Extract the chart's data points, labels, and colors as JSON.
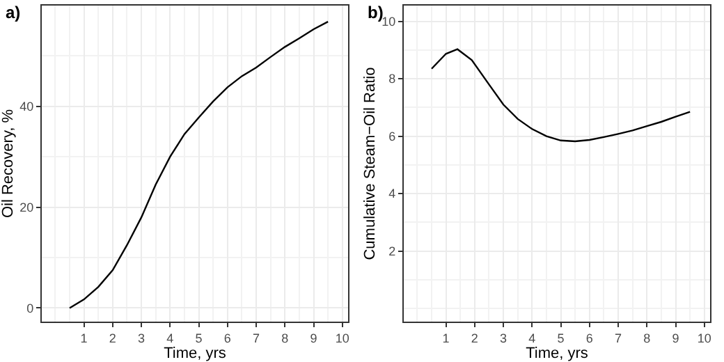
{
  "chart_data": [
    {
      "type": "line",
      "title": "a)",
      "xlabel": "Time, yrs",
      "ylabel": "Oil Recovery, %",
      "x": [
        0.5,
        1,
        1.5,
        2,
        2.5,
        3,
        3.5,
        4,
        4.5,
        5,
        5.5,
        6,
        6.5,
        7,
        7.5,
        8,
        8.5,
        9,
        9.5
      ],
      "series": [
        {
          "color": "#000000",
          "values": [
            0,
            1.7,
            4.2,
            7.5,
            12.5,
            18,
            24.5,
            30,
            34.5,
            37.8,
            41,
            43.8,
            46,
            47.7,
            49.8,
            51.8,
            53.5,
            55.3,
            56.8
          ]
        }
      ],
      "xlim": [
        -0.47,
        10.2
      ],
      "xticks": [
        1,
        2,
        3,
        4,
        5,
        6,
        7,
        8,
        9,
        10
      ],
      "ylim": [
        -2.7,
        60
      ],
      "yticks": [
        0,
        20,
        40
      ],
      "grid": true,
      "line_style": "solid"
    },
    {
      "type": "line",
      "title": "b)",
      "xlabel": "Time, yrs",
      "ylabel": "Cumulative Steam−Oil Ratio",
      "x": [
        0.5,
        1,
        1.4,
        1.9,
        2.5,
        3,
        3.5,
        4,
        4.5,
        5,
        5.5,
        6,
        6.5,
        7,
        7.5,
        8,
        8.5,
        9,
        9.5
      ],
      "series": [
        {
          "color": "#000000",
          "values": [
            8.35,
            8.87,
            9.03,
            8.65,
            7.8,
            7.1,
            6.6,
            6.25,
            6.0,
            5.85,
            5.82,
            5.87,
            5.97,
            6.08,
            6.2,
            6.35,
            6.5,
            6.68,
            6.85
          ]
        }
      ],
      "xlim": [
        -0.47,
        10.2
      ],
      "xticks": [
        1,
        2,
        3,
        4,
        5,
        6,
        7,
        8,
        9,
        10
      ],
      "ylim": [
        -0.46,
        10.55
      ],
      "yticks": [
        2,
        4,
        6,
        8,
        10
      ],
      "grid": true,
      "line_style": "solid"
    }
  ]
}
